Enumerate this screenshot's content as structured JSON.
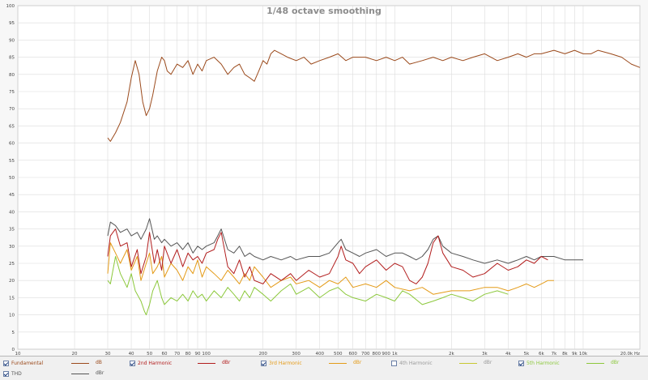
{
  "chart_data": {
    "type": "line",
    "title": "1/48 octave smoothing",
    "xscale": "log",
    "xlim": [
      10,
      20000
    ],
    "ylim": [
      0,
      100
    ],
    "grid": true,
    "xticks": [
      10,
      20,
      30,
      40,
      50,
      60,
      70,
      80,
      90,
      100,
      200,
      300,
      400,
      500,
      600,
      700,
      800,
      900,
      1000,
      2000,
      3000,
      4000,
      5000,
      6000,
      7000,
      8000,
      9000,
      10000,
      20000
    ],
    "xtick_labels": [
      "10",
      "20",
      "30",
      "40",
      "50",
      "60",
      "70",
      "80",
      "90",
      "100",
      "200",
      "300",
      "400",
      "500",
      "600",
      "700",
      "800",
      "900",
      "1k",
      "2k",
      "3k",
      "4k",
      "5k",
      "6k",
      "7k",
      "8k",
      "9k",
      "10k",
      "20.0k Hz"
    ],
    "yticks": [
      0,
      5,
      10,
      15,
      20,
      25,
      30,
      35,
      40,
      45,
      50,
      55,
      60,
      65,
      70,
      75,
      80,
      85,
      90,
      95,
      100
    ],
    "ytick_labels": [
      "0",
      "5",
      "10",
      "15",
      "20",
      "25",
      "30",
      "35",
      "40",
      "45",
      "50",
      "55",
      "60",
      "65",
      "70",
      "75",
      "80",
      "85",
      "90",
      "95",
      "100"
    ],
    "series": [
      {
        "name": "Fundamental",
        "unit": "dB",
        "color": "#9b4a1c",
        "checked": true,
        "x": [
          30,
          31,
          33,
          35,
          38,
          40,
          42,
          44,
          46,
          48,
          50,
          52,
          55,
          58,
          60,
          62,
          65,
          70,
          75,
          80,
          85,
          90,
          95,
          100,
          110,
          120,
          130,
          140,
          150,
          160,
          170,
          180,
          190,
          200,
          210,
          220,
          230,
          250,
          270,
          300,
          330,
          360,
          400,
          450,
          500,
          550,
          600,
          700,
          800,
          900,
          1000,
          1100,
          1200,
          1400,
          1600,
          1800,
          2000,
          2300,
          2600,
          3000,
          3500,
          4000,
          4500,
          5000,
          5500,
          6000,
          7000,
          8000,
          9000,
          10000,
          11000,
          12000,
          14000,
          16000,
          18000,
          20000
        ],
        "y": [
          61.5,
          60.5,
          63,
          66,
          72,
          79,
          84,
          80,
          72,
          68,
          70,
          74,
          81,
          85,
          84,
          81,
          80,
          83,
          82,
          84,
          80,
          83,
          81,
          84,
          85,
          83,
          80,
          82,
          83,
          80,
          79,
          78,
          81,
          84,
          83,
          86,
          87,
          86,
          85,
          84,
          85,
          83,
          84,
          85,
          86,
          84,
          85,
          85,
          84,
          85,
          84,
          85,
          83,
          84,
          85,
          84,
          85,
          84,
          85,
          86,
          84,
          85,
          86,
          85,
          86,
          86,
          87,
          86,
          87,
          86,
          86,
          87,
          86,
          85,
          83,
          82
        ]
      },
      {
        "name": "2nd Harmonic",
        "unit": "dBr",
        "color": "#b21d1d",
        "checked": true,
        "x": [
          30,
          31,
          33,
          35,
          38,
          40,
          43,
          45,
          48,
          50,
          53,
          55,
          58,
          60,
          65,
          70,
          75,
          80,
          85,
          90,
          95,
          100,
          110,
          115,
          120,
          130,
          140,
          150,
          160,
          170,
          180,
          200,
          220,
          250,
          280,
          300,
          350,
          400,
          450,
          500,
          520,
          550,
          600,
          650,
          700,
          800,
          900,
          1000,
          1100,
          1200,
          1300,
          1400,
          1500,
          1600,
          1700,
          1800,
          2000,
          2300,
          2600,
          3000,
          3500,
          4000,
          4500,
          5000,
          5500,
          6000,
          6500
        ],
        "y": [
          27,
          33,
          35,
          30,
          31,
          24,
          29,
          22,
          27,
          34,
          25,
          29,
          23,
          30,
          25,
          29,
          24,
          28,
          26,
          27,
          25,
          28,
          29,
          32,
          34,
          24,
          22,
          26,
          21,
          24,
          20,
          19,
          22,
          20,
          22,
          20,
          23,
          21,
          22,
          27,
          30,
          26,
          25,
          22,
          24,
          26,
          23,
          25,
          24,
          20,
          19,
          21,
          25,
          31,
          33,
          28,
          24,
          23,
          21,
          22,
          25,
          23,
          24,
          26,
          25,
          27,
          26
        ]
      },
      {
        "name": "3rd Harmonic",
        "unit": "dBr",
        "color": "#e49b18",
        "checked": true,
        "x": [
          30,
          31,
          33,
          35,
          38,
          40,
          43,
          45,
          48,
          50,
          52,
          55,
          58,
          60,
          65,
          70,
          75,
          80,
          85,
          90,
          95,
          100,
          110,
          120,
          130,
          140,
          150,
          160,
          170,
          180,
          200,
          220,
          250,
          280,
          300,
          350,
          400,
          450,
          500,
          550,
          600,
          700,
          800,
          900,
          1000,
          1200,
          1400,
          1600,
          2000,
          2500,
          3000,
          3500,
          4000,
          4500,
          5000,
          5500,
          6000,
          6500,
          7000
        ],
        "y": [
          22,
          31,
          28,
          25,
          29,
          23,
          27,
          20,
          25,
          28,
          22,
          24,
          27,
          21,
          25,
          23,
          20,
          24,
          22,
          26,
          21,
          24,
          22,
          20,
          23,
          21,
          19,
          22,
          20,
          24,
          21,
          18,
          20,
          21,
          19,
          20,
          18,
          20,
          19,
          21,
          18,
          19,
          18,
          20,
          18,
          17,
          18,
          16,
          17,
          17,
          18,
          18,
          17,
          18,
          19,
          18,
          19,
          20,
          20
        ]
      },
      {
        "name": "4th Harmonic",
        "unit": "dBr",
        "color": "#c8c832",
        "checked": false,
        "x": [],
        "y": []
      },
      {
        "name": "5th Harmonic",
        "unit": "dBr",
        "color": "#8cc83c",
        "checked": true,
        "x": [
          30,
          31,
          33,
          35,
          38,
          40,
          42,
          45,
          47,
          48,
          50,
          52,
          55,
          58,
          60,
          65,
          70,
          75,
          80,
          85,
          90,
          95,
          100,
          110,
          120,
          130,
          140,
          150,
          160,
          170,
          180,
          200,
          220,
          250,
          280,
          300,
          350,
          400,
          450,
          500,
          550,
          600,
          700,
          800,
          900,
          1000,
          1100,
          1200,
          1400,
          1600,
          1800,
          2000,
          2300,
          2600,
          3000,
          3500,
          4000
        ],
        "y": [
          20,
          19,
          27,
          22,
          18,
          22,
          17,
          14,
          11,
          10,
          13,
          17,
          20,
          15,
          13,
          15,
          14,
          16,
          14,
          17,
          15,
          16,
          14,
          17,
          15,
          18,
          16,
          14,
          17,
          15,
          18,
          16,
          14,
          17,
          19,
          16,
          18,
          15,
          17,
          18,
          16,
          15,
          14,
          16,
          15,
          14,
          17,
          16,
          13,
          14,
          15,
          16,
          15,
          14,
          16,
          17,
          16
        ]
      },
      {
        "name": "THD",
        "unit": "dBr",
        "color": "#555555",
        "checked": true,
        "x": [
          30,
          31,
          33,
          35,
          38,
          40,
          43,
          45,
          48,
          50,
          53,
          55,
          58,
          60,
          65,
          70,
          75,
          80,
          85,
          90,
          95,
          100,
          110,
          115,
          120,
          130,
          140,
          150,
          160,
          170,
          180,
          200,
          220,
          250,
          280,
          300,
          350,
          400,
          450,
          500,
          520,
          550,
          600,
          650,
          700,
          800,
          900,
          1000,
          1100,
          1200,
          1300,
          1400,
          1500,
          1600,
          1700,
          1800,
          2000,
          2300,
          2600,
          3000,
          3500,
          4000,
          4500,
          5000,
          5500,
          6000,
          7000,
          8000,
          9000,
          10000
        ],
        "y": [
          33,
          37,
          36,
          34,
          35,
          33,
          34,
          32,
          35,
          38,
          32,
          33,
          31,
          32,
          30,
          31,
          29,
          31,
          28,
          30,
          29,
          30,
          31,
          33,
          35,
          29,
          28,
          30,
          27,
          28,
          27,
          26,
          27,
          26,
          27,
          26,
          27,
          27,
          28,
          31,
          32,
          29,
          28,
          27,
          28,
          29,
          27,
          28,
          28,
          27,
          26,
          27,
          29,
          32,
          33,
          30,
          28,
          27,
          26,
          25,
          26,
          25,
          26,
          27,
          26,
          27,
          27,
          26,
          26,
          26
        ]
      }
    ]
  },
  "legend": {
    "rows": [
      [
        {
          "ref": 0
        },
        {
          "ref": 1
        },
        {
          "ref": 2
        },
        {
          "ref": 3
        },
        {
          "ref": 4
        }
      ],
      [
        {
          "ref": 5
        }
      ]
    ]
  }
}
